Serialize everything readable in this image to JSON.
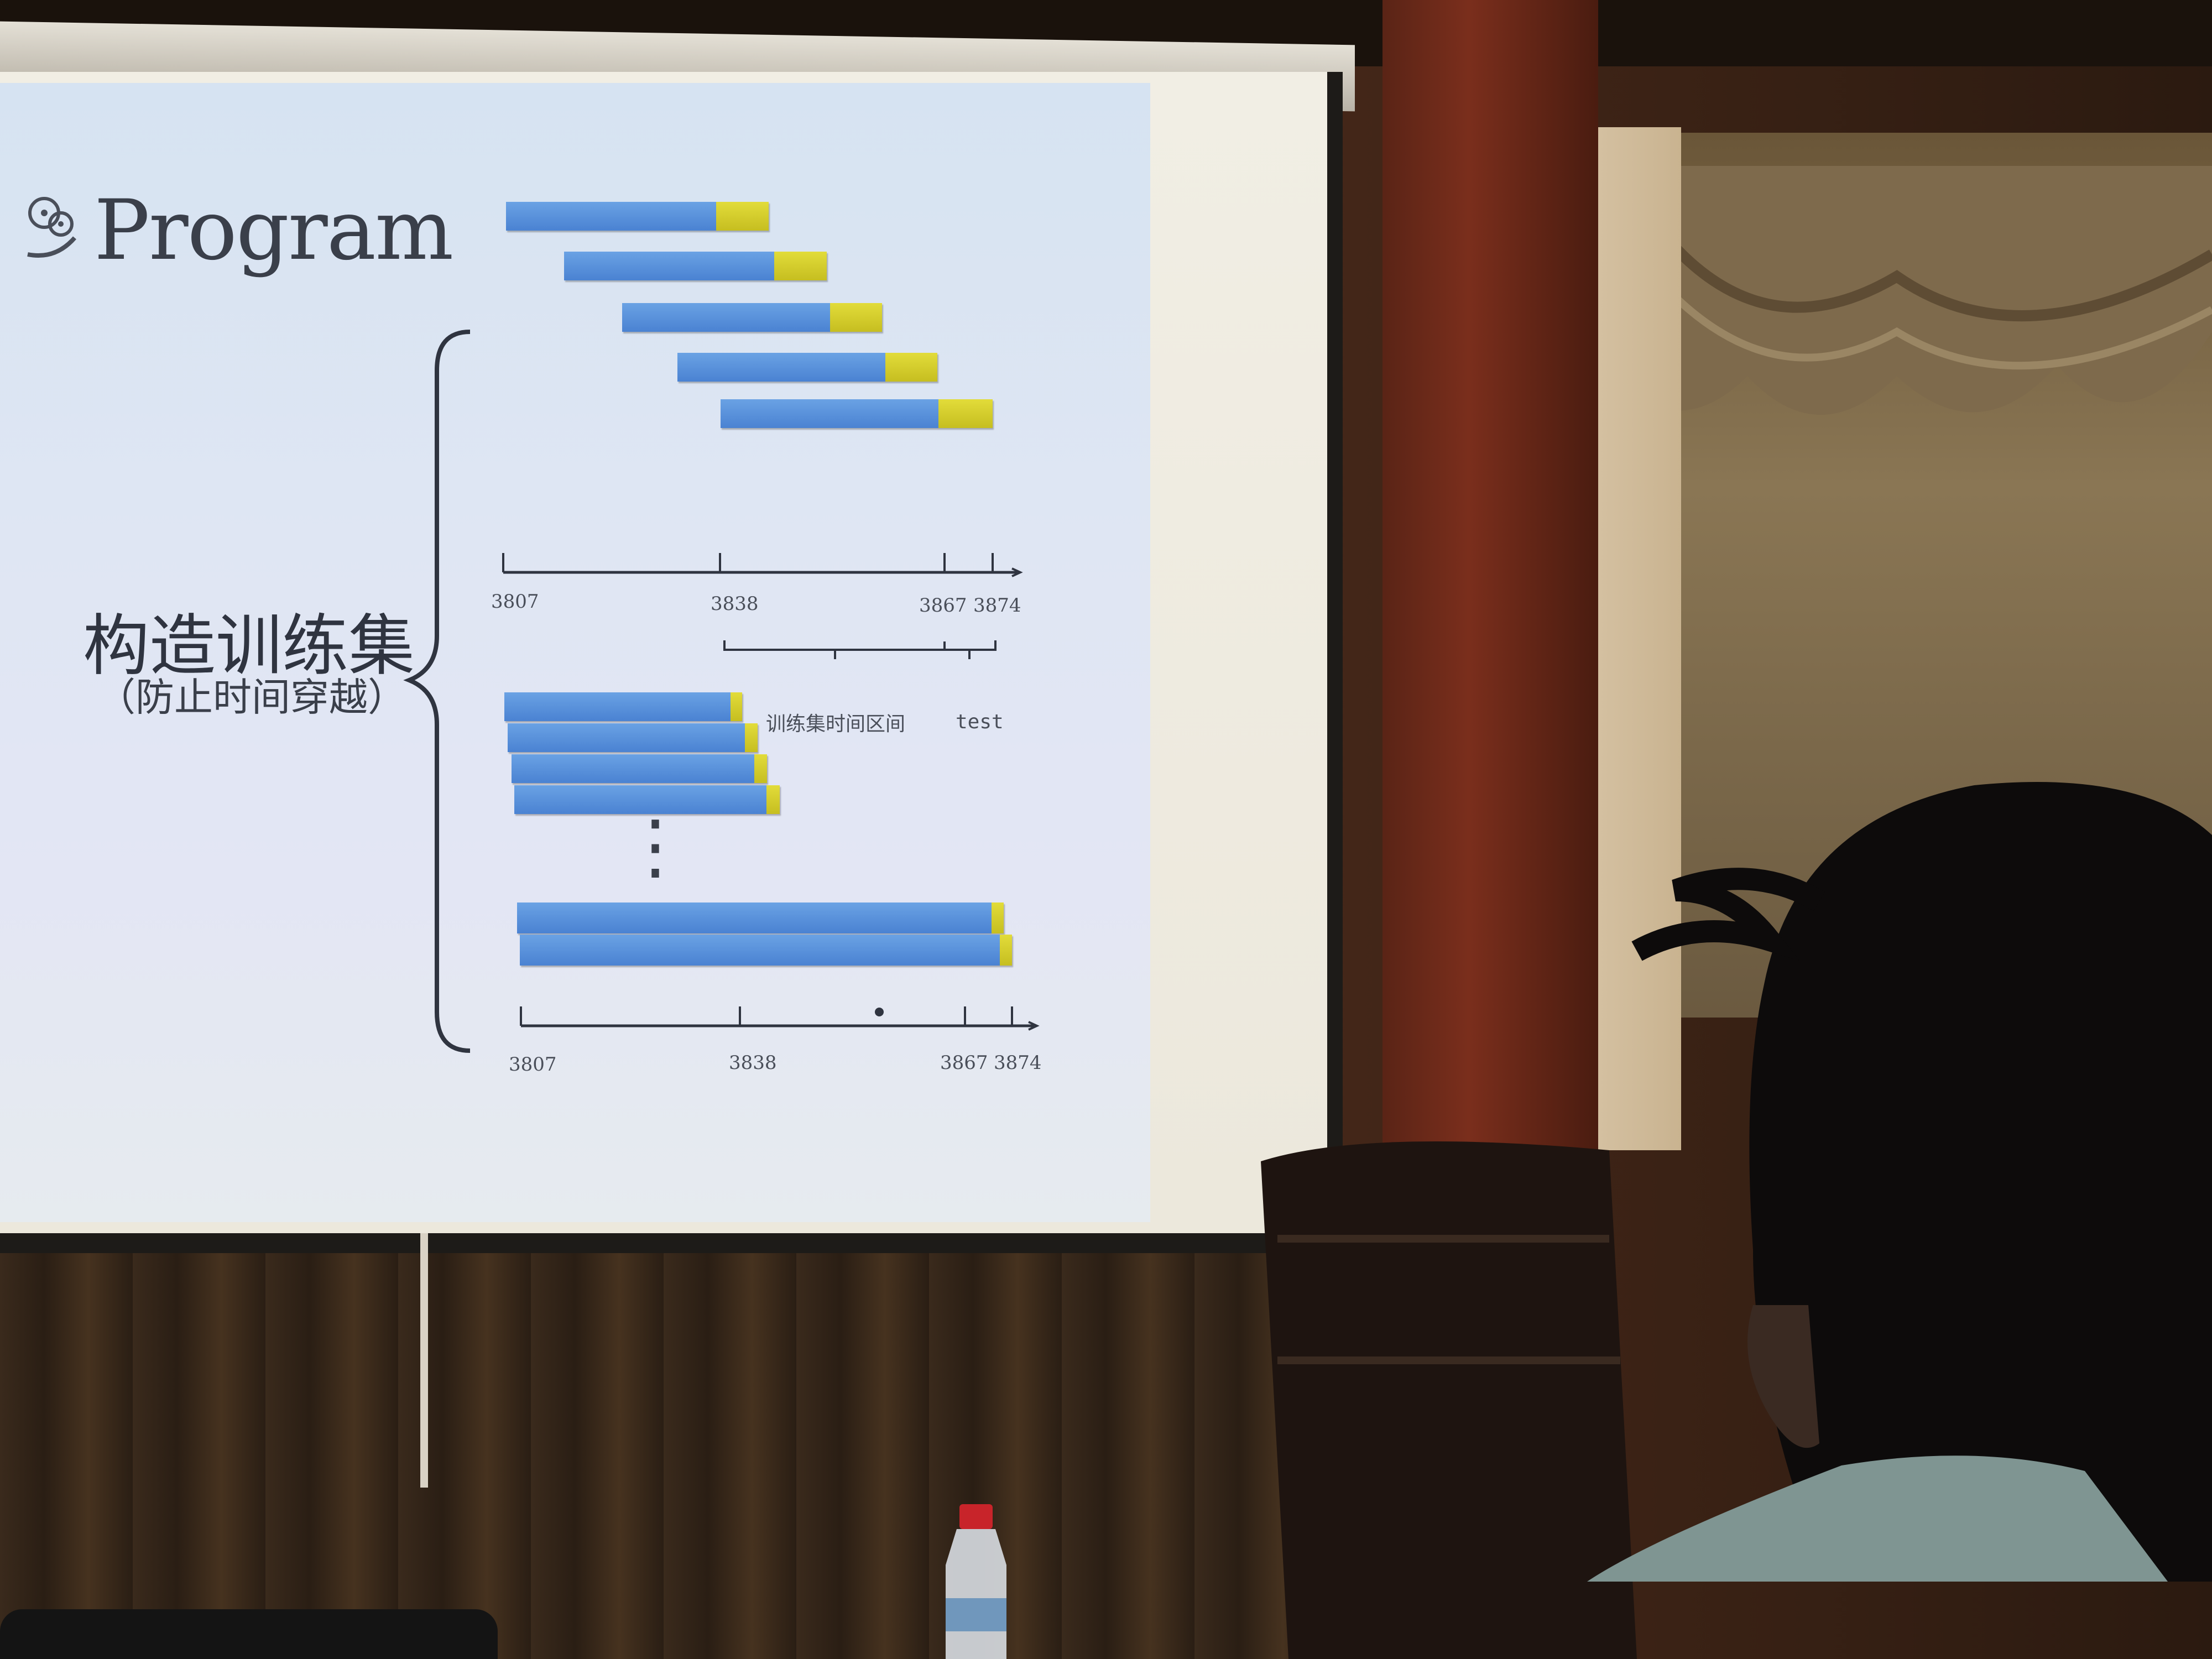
{
  "slide": {
    "title": "Program",
    "main_label": "构造训练集",
    "sub_label": "（防止时间穿越）",
    "axis_ticks": [
      "3807",
      "3838",
      "3867",
      "3874"
    ],
    "train_interval_label": "训练集时间区间",
    "test_label": "test",
    "ellipsis": "⋮"
  },
  "icons": {
    "title_icon": "film-reel-icon"
  },
  "colors": {
    "train_bar": "#4a82d2",
    "test_bar": "#d4cc2c",
    "slide_bg": "#dfe6f3"
  }
}
